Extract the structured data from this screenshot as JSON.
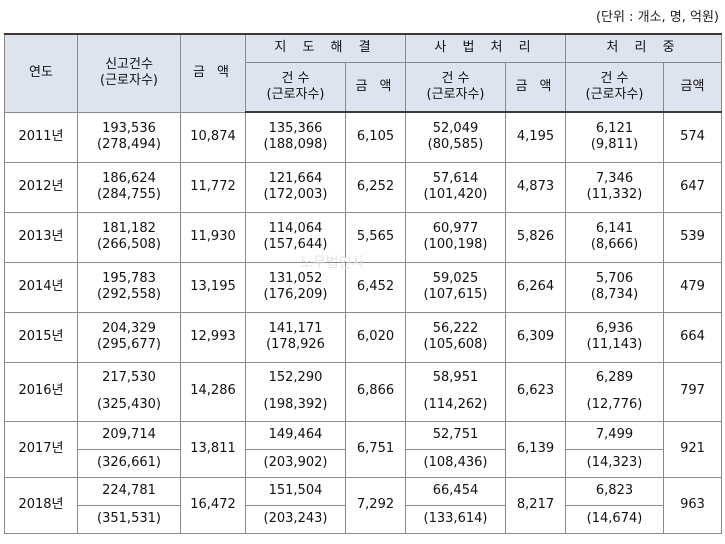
{
  "unit_note": "(단위 : 개소, 명, 억원)",
  "headers": {
    "year": "연도",
    "report_count_top": "신고건수",
    "report_count_bottom": "(근로자수)",
    "amount": "금 액",
    "amount_short": "금액",
    "guidance": "지 도 해 결",
    "judicial": "사 법 처 리",
    "processing": "처 리 중",
    "count_top": "건 수",
    "count_bottom": "(근로자수)"
  },
  "watermark": "노무법인사",
  "rows": [
    {
      "year": "2011년",
      "rc": "193,536",
      "rw": "(278,494)",
      "amt": "10,874",
      "gc": "135,366",
      "gw": "(188,098)",
      "ga": "6,105",
      "jc": "52,049",
      "jw": "(80,585)",
      "ja": "4,195",
      "pc": "6,121",
      "pw": "(9,811)",
      "pa": "574"
    },
    {
      "year": "2012년",
      "rc": "186,624",
      "rw": "(284,755)",
      "amt": "11,772",
      "gc": "121,664",
      "gw": "(172,003)",
      "ga": "6,252",
      "jc": "57,614",
      "jw": "(101,420)",
      "ja": "4,873",
      "pc": "7,346",
      "pw": "(11,332)",
      "pa": "647"
    },
    {
      "year": "2013년",
      "rc": "181,182",
      "rw": "(266,508)",
      "amt": "11,930",
      "gc": "114,064",
      "gw": "(157,644)",
      "ga": "5,565",
      "jc": "60,977",
      "jw": "(100,198)",
      "ja": "5,826",
      "pc": "6,141",
      "pw": "(8,666)",
      "pa": "539"
    },
    {
      "year": "2014년",
      "rc": "195,783",
      "rw": "(292,558)",
      "amt": "13,195",
      "gc": "131,052",
      "gw": "(176,209)",
      "ga": "6,452",
      "jc": "59,025",
      "jw": "(107,615)",
      "ja": "6,264",
      "pc": "5,706",
      "pw": "(8,734)",
      "pa": "479"
    },
    {
      "year": "2015년",
      "rc": "204,329",
      "rw": "(295,677)",
      "amt": "12,993",
      "gc": "141,171",
      "gw": "(178,926",
      "ga": "6,020",
      "jc": "56,222",
      "jw": "(105,608)",
      "ja": "6,309",
      "pc": "6,936",
      "pw": "(11,143)",
      "pa": "664"
    },
    {
      "year": "2016년",
      "rc": "217,530",
      "rw": "(325,430)",
      "amt": "14,286",
      "gc": "152,290",
      "gw": "(198,392)",
      "ga": "6,866",
      "jc": "58,951",
      "jw": "(114,262)",
      "ja": "6,623",
      "pc": "6,289",
      "pw": "(12,776)",
      "pa": "797"
    },
    {
      "year": "2017년",
      "rc": "209,714",
      "rw": "(326,661)",
      "amt": "13,811",
      "gc": "149,464",
      "gw": "(203,902)",
      "ga": "6,751",
      "jc": "52,751",
      "jw": "(108,436)",
      "ja": "6,139",
      "pc": "7,499",
      "pw": "(14,323)",
      "pa": "921"
    },
    {
      "year": "2018년",
      "rc": "224,781",
      "rw": "(351,531)",
      "amt": "16,472",
      "gc": "151,504",
      "gw": "(203,243)",
      "ga": "7,292",
      "jc": "66,454",
      "jw": "(133,614)",
      "ja": "8,217",
      "pc": "6,823",
      "pw": "(14,674)",
      "pa": "963"
    }
  ]
}
